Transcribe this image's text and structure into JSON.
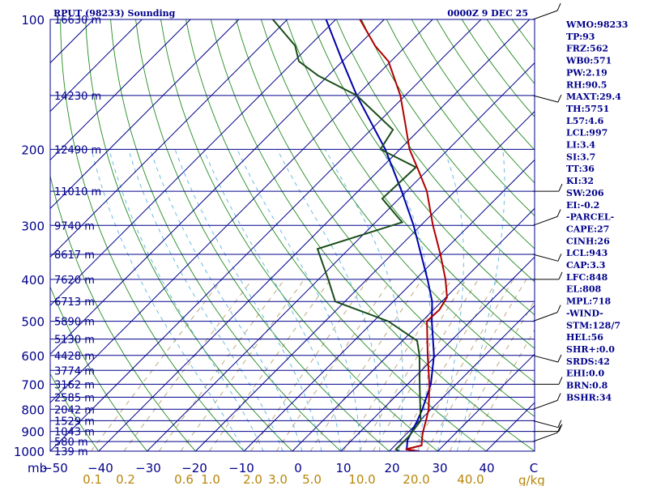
{
  "header": {
    "title_left": "RPUT (98233) Sounding",
    "title_right": "0000Z  9 DEC 25"
  },
  "axes": {
    "pressure_unit": "mb",
    "pressure_ticks": [
      "100",
      "200",
      "300",
      "400",
      "500",
      "600",
      "700",
      "800",
      "900",
      "1000"
    ],
    "temperature_ticks": [
      "−50",
      "−40",
      "−30",
      "−20",
      "−10",
      "0",
      "10",
      "20",
      "30",
      "40",
      "C"
    ],
    "mixing_ratio_ticks": [
      "0.1",
      "0.2",
      "0.6",
      "1.0",
      "2.0",
      "3.0",
      "5.0",
      "10.0",
      "20.0",
      "40.0"
    ],
    "mixing_ratio_unit": "g/kg"
  },
  "indices": [
    "WMO:98233",
    "TP:93",
    "FRZ:562",
    "WB0:571",
    "PW:2.19",
    "RH:90.5",
    "MAXT:29.4",
    "TH:5751",
    "L57:4.6",
    "LCL:997",
    "LI:3.4",
    "SI:3.7",
    "TT:36",
    "KI:32",
    "SW:206",
    "EI:-0.2",
    "-PARCEL-",
    "CAPE:27",
    "CINH:26",
    "LCL:943",
    "CAP:3.3",
    "LFC:848",
    "EL:808",
    "MPL:718",
    "-WIND-",
    "STM:128/7",
    "HEL:56",
    "SHR+:0.0",
    "SRDS:42",
    "EHI:0.0",
    "BRN:0.8",
    "BSHR:34"
  ],
  "colors": {
    "frame": "#00008b",
    "isotherm": "#00008b",
    "dry_adiabat": "#228b22",
    "moist_adiabat": "#5ab4e0",
    "mixing_ratio": "#b8a070",
    "temperature": "#b00000",
    "dewpoint": "#1a4d1a",
    "parcel": "#0000aa",
    "mixing_label": "#b8860b"
  },
  "chart_data": {
    "type": "skew-t",
    "title": "RPUT (98233) Sounding",
    "xlabel": "C",
    "ylabel": "mb",
    "ylim": [
      1000,
      100
    ],
    "xlim": [
      -50,
      50
    ],
    "height_labels": [
      {
        "p": 100,
        "label": "16630 m"
      },
      {
        "p": 150,
        "label": "14230 m"
      },
      {
        "p": 200,
        "label": "12490 m"
      },
      {
        "p": 250,
        "label": "11010 m"
      },
      {
        "p": 300,
        "label": "9740 m"
      },
      {
        "p": 350,
        "label": "8617 m"
      },
      {
        "p": 400,
        "label": "7620 m"
      },
      {
        "p": 450,
        "label": "6713 m"
      },
      {
        "p": 500,
        "label": "5890 m"
      },
      {
        "p": 550,
        "label": "5130 m"
      },
      {
        "p": 600,
        "label": "4428 m"
      },
      {
        "p": 650,
        "label": "3774 m"
      },
      {
        "p": 700,
        "label": "3162 m"
      },
      {
        "p": 750,
        "label": "2585 m"
      },
      {
        "p": 800,
        "label": "2042 m"
      },
      {
        "p": 850,
        "label": "1529 m"
      },
      {
        "p": 900,
        "label": "1043 m"
      },
      {
        "p": 950,
        "label": "580 m"
      },
      {
        "p": 1000,
        "label": "139 m"
      }
    ],
    "temperature": [
      {
        "p": 1010,
        "t": 28.0
      },
      {
        "p": 1000,
        "t": 26.0
      },
      {
        "p": 990,
        "t": 23.0
      },
      {
        "p": 970,
        "t": 25.5
      },
      {
        "p": 925,
        "t": 23.8
      },
      {
        "p": 900,
        "t": 22.9
      },
      {
        "p": 850,
        "t": 21.3
      },
      {
        "p": 800,
        "t": 19.5
      },
      {
        "p": 700,
        "t": 14.5
      },
      {
        "p": 600,
        "t": 8.2
      },
      {
        "p": 500,
        "t": 1.0
      },
      {
        "p": 470,
        "t": 1.2
      },
      {
        "p": 440,
        "t": 0.2
      },
      {
        "p": 400,
        "t": -3.8
      },
      {
        "p": 350,
        "t": -10.0
      },
      {
        "p": 300,
        "t": -17.5
      },
      {
        "p": 250,
        "t": -25.8
      },
      {
        "p": 225,
        "t": -31.5
      },
      {
        "p": 200,
        "t": -38.0
      },
      {
        "p": 175,
        "t": -44.0
      },
      {
        "p": 150,
        "t": -51.0
      },
      {
        "p": 125,
        "t": -60.5
      },
      {
        "p": 115,
        "t": -66.5
      },
      {
        "p": 100,
        "t": -75.0
      }
    ],
    "dewpoint": [
      {
        "p": 1010,
        "t": 23.0
      },
      {
        "p": 1000,
        "t": 22.0
      },
      {
        "p": 990,
        "t": 21.0
      },
      {
        "p": 925,
        "t": 21.0
      },
      {
        "p": 850,
        "t": 20.2
      },
      {
        "p": 700,
        "t": 12.5
      },
      {
        "p": 600,
        "t": 6.5
      },
      {
        "p": 555,
        "t": 3.0
      },
      {
        "p": 500,
        "t": -7.0
      },
      {
        "p": 450,
        "t": -22.0
      },
      {
        "p": 400,
        "t": -28.0
      },
      {
        "p": 340,
        "t": -36.5
      },
      {
        "p": 295,
        "t": -24.5
      },
      {
        "p": 260,
        "t": -33.5
      },
      {
        "p": 220,
        "t": -33.0
      },
      {
        "p": 200,
        "t": -44.0
      },
      {
        "p": 180,
        "t": -45.5
      },
      {
        "p": 150,
        "t": -60.0
      },
      {
        "p": 135,
        "t": -72.0
      },
      {
        "p": 125,
        "t": -79.0
      },
      {
        "p": 115,
        "t": -83.0
      },
      {
        "p": 100,
        "t": -93.0
      }
    ],
    "parcel": [
      {
        "p": 1010,
        "t": 28.0
      },
      {
        "p": 990,
        "t": 23.2
      },
      {
        "p": 943,
        "t": 21.5
      },
      {
        "p": 900,
        "t": 20.6
      },
      {
        "p": 850,
        "t": 19.5
      },
      {
        "p": 800,
        "t": 18.2
      },
      {
        "p": 700,
        "t": 14.8
      },
      {
        "p": 600,
        "t": 9.5
      },
      {
        "p": 500,
        "t": 2.0
      },
      {
        "p": 450,
        "t": -2.0
      },
      {
        "p": 400,
        "t": -7.5
      },
      {
        "p": 350,
        "t": -14.0
      },
      {
        "p": 300,
        "t": -21.5
      },
      {
        "p": 250,
        "t": -31.0
      },
      {
        "p": 200,
        "t": -43.0
      },
      {
        "p": 150,
        "t": -60.0
      },
      {
        "p": 125,
        "t": -70.0
      },
      {
        "p": 100,
        "t": -82.0
      }
    ],
    "wind_barbs_present": true,
    "grid": true
  }
}
